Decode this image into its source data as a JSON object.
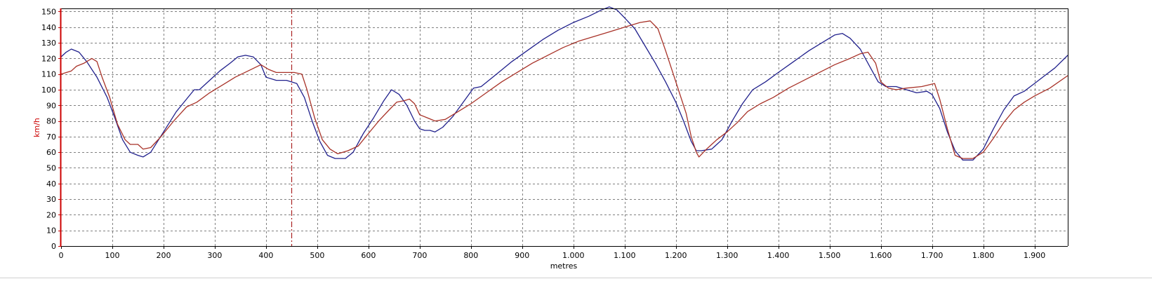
{
  "chart_data": {
    "type": "line",
    "xlabel": "metres",
    "ylabel": "km/h",
    "xlim": [
      0,
      1965
    ],
    "ylim": [
      0,
      152
    ],
    "grid": true,
    "x_ticks": [
      0,
      100,
      200,
      300,
      400,
      500,
      600,
      700,
      800,
      900,
      1000,
      1100,
      1200,
      1300,
      1400,
      1500,
      1600,
      1700,
      1800,
      1900
    ],
    "x_tick_labels": [
      "0",
      "100",
      "200",
      "300",
      "400",
      "500",
      "600",
      "700",
      "800",
      "900",
      "1.000",
      "1.100",
      "1.200",
      "1.300",
      "1.400",
      "1.500",
      "1.600",
      "1.700",
      "1.800",
      "1.900"
    ],
    "y_ticks": [
      0,
      10,
      20,
      30,
      40,
      50,
      60,
      70,
      80,
      90,
      100,
      110,
      120,
      130,
      140,
      150
    ],
    "cursor_x": 450,
    "colors": {
      "axis": "#cc0000",
      "grid": "#808080",
      "cursor": "#aa2222",
      "frame": "#000000"
    },
    "series": [
      {
        "color": "#20208c",
        "points": [
          [
            0,
            121
          ],
          [
            10,
            124
          ],
          [
            20,
            126
          ],
          [
            35,
            124
          ],
          [
            50,
            118
          ],
          [
            70,
            108
          ],
          [
            90,
            95
          ],
          [
            105,
            82
          ],
          [
            120,
            68
          ],
          [
            135,
            60
          ],
          [
            150,
            58
          ],
          [
            160,
            57
          ],
          [
            175,
            60
          ],
          [
            200,
            73
          ],
          [
            225,
            86
          ],
          [
            250,
            96
          ],
          [
            260,
            100
          ],
          [
            270,
            100
          ],
          [
            290,
            106
          ],
          [
            310,
            112
          ],
          [
            330,
            117
          ],
          [
            345,
            121
          ],
          [
            360,
            122
          ],
          [
            375,
            121
          ],
          [
            390,
            116
          ],
          [
            400,
            108
          ],
          [
            420,
            106
          ],
          [
            440,
            106
          ],
          [
            460,
            104
          ],
          [
            475,
            95
          ],
          [
            490,
            80
          ],
          [
            505,
            67
          ],
          [
            520,
            58
          ],
          [
            535,
            56
          ],
          [
            555,
            56
          ],
          [
            570,
            60
          ],
          [
            590,
            72
          ],
          [
            610,
            82
          ],
          [
            630,
            93
          ],
          [
            645,
            100
          ],
          [
            660,
            97
          ],
          [
            675,
            90
          ],
          [
            690,
            80
          ],
          [
            700,
            75
          ],
          [
            710,
            74
          ],
          [
            720,
            74
          ],
          [
            730,
            73
          ],
          [
            745,
            76
          ],
          [
            765,
            83
          ],
          [
            785,
            92
          ],
          [
            805,
            101
          ],
          [
            820,
            102
          ],
          [
            850,
            110
          ],
          [
            880,
            118
          ],
          [
            910,
            125
          ],
          [
            940,
            132
          ],
          [
            970,
            138
          ],
          [
            1000,
            143
          ],
          [
            1030,
            147
          ],
          [
            1055,
            151
          ],
          [
            1070,
            153
          ],
          [
            1085,
            151
          ],
          [
            1100,
            146
          ],
          [
            1120,
            139
          ],
          [
            1140,
            128
          ],
          [
            1160,
            117
          ],
          [
            1180,
            105
          ],
          [
            1200,
            92
          ],
          [
            1215,
            80
          ],
          [
            1230,
            67
          ],
          [
            1240,
            61
          ],
          [
            1250,
            61
          ],
          [
            1270,
            62
          ],
          [
            1290,
            68
          ],
          [
            1310,
            80
          ],
          [
            1330,
            91
          ],
          [
            1350,
            100
          ],
          [
            1375,
            105
          ],
          [
            1400,
            111
          ],
          [
            1430,
            118
          ],
          [
            1460,
            125
          ],
          [
            1490,
            131
          ],
          [
            1510,
            135
          ],
          [
            1525,
            136
          ],
          [
            1540,
            133
          ],
          [
            1560,
            126
          ],
          [
            1580,
            114
          ],
          [
            1595,
            105
          ],
          [
            1610,
            102
          ],
          [
            1630,
            102
          ],
          [
            1650,
            100
          ],
          [
            1670,
            98
          ],
          [
            1690,
            99
          ],
          [
            1700,
            97
          ],
          [
            1715,
            88
          ],
          [
            1730,
            73
          ],
          [
            1745,
            61
          ],
          [
            1760,
            55
          ],
          [
            1780,
            55
          ],
          [
            1800,
            62
          ],
          [
            1820,
            75
          ],
          [
            1840,
            87
          ],
          [
            1860,
            96
          ],
          [
            1880,
            99
          ],
          [
            1900,
            104
          ],
          [
            1920,
            109
          ],
          [
            1940,
            114
          ],
          [
            1965,
            122
          ]
        ]
      },
      {
        "color": "#a83228",
        "points": [
          [
            0,
            110
          ],
          [
            20,
            112
          ],
          [
            30,
            115
          ],
          [
            45,
            117
          ],
          [
            60,
            120
          ],
          [
            70,
            118
          ],
          [
            80,
            108
          ],
          [
            95,
            95
          ],
          [
            110,
            78
          ],
          [
            125,
            68
          ],
          [
            135,
            65
          ],
          [
            150,
            65
          ],
          [
            160,
            62
          ],
          [
            175,
            63
          ],
          [
            195,
            70
          ],
          [
            220,
            80
          ],
          [
            245,
            89
          ],
          [
            265,
            92
          ],
          [
            290,
            98
          ],
          [
            315,
            103
          ],
          [
            340,
            108
          ],
          [
            365,
            112
          ],
          [
            390,
            116
          ],
          [
            405,
            113
          ],
          [
            420,
            111
          ],
          [
            440,
            111
          ],
          [
            455,
            111
          ],
          [
            470,
            110
          ],
          [
            480,
            100
          ],
          [
            495,
            82
          ],
          [
            510,
            68
          ],
          [
            525,
            62
          ],
          [
            540,
            59
          ],
          [
            560,
            61
          ],
          [
            580,
            64
          ],
          [
            600,
            72
          ],
          [
            620,
            80
          ],
          [
            640,
            87
          ],
          [
            655,
            92
          ],
          [
            670,
            93
          ],
          [
            680,
            94
          ],
          [
            690,
            91
          ],
          [
            700,
            84
          ],
          [
            715,
            82
          ],
          [
            730,
            80
          ],
          [
            750,
            81
          ],
          [
            775,
            86
          ],
          [
            800,
            91
          ],
          [
            830,
            98
          ],
          [
            860,
            105
          ],
          [
            890,
            111
          ],
          [
            920,
            117
          ],
          [
            950,
            122
          ],
          [
            980,
            127
          ],
          [
            1010,
            131
          ],
          [
            1040,
            134
          ],
          [
            1070,
            137
          ],
          [
            1100,
            140
          ],
          [
            1130,
            143
          ],
          [
            1150,
            144
          ],
          [
            1165,
            139
          ],
          [
            1180,
            125
          ],
          [
            1195,
            110
          ],
          [
            1210,
            95
          ],
          [
            1220,
            85
          ],
          [
            1230,
            70
          ],
          [
            1240,
            60
          ],
          [
            1245,
            57
          ],
          [
            1260,
            62
          ],
          [
            1280,
            68
          ],
          [
            1300,
            73
          ],
          [
            1320,
            79
          ],
          [
            1340,
            86
          ],
          [
            1365,
            91
          ],
          [
            1390,
            95
          ],
          [
            1420,
            101
          ],
          [
            1450,
            106
          ],
          [
            1480,
            111
          ],
          [
            1510,
            116
          ],
          [
            1540,
            120
          ],
          [
            1560,
            123
          ],
          [
            1575,
            124
          ],
          [
            1590,
            117
          ],
          [
            1600,
            105
          ],
          [
            1615,
            101
          ],
          [
            1630,
            100
          ],
          [
            1650,
            101
          ],
          [
            1680,
            102
          ],
          [
            1705,
            104
          ],
          [
            1715,
            94
          ],
          [
            1730,
            75
          ],
          [
            1745,
            58
          ],
          [
            1760,
            56
          ],
          [
            1780,
            56
          ],
          [
            1800,
            60
          ],
          [
            1820,
            69
          ],
          [
            1840,
            79
          ],
          [
            1860,
            87
          ],
          [
            1880,
            92
          ],
          [
            1900,
            96
          ],
          [
            1930,
            101
          ],
          [
            1965,
            109
          ]
        ]
      }
    ]
  }
}
